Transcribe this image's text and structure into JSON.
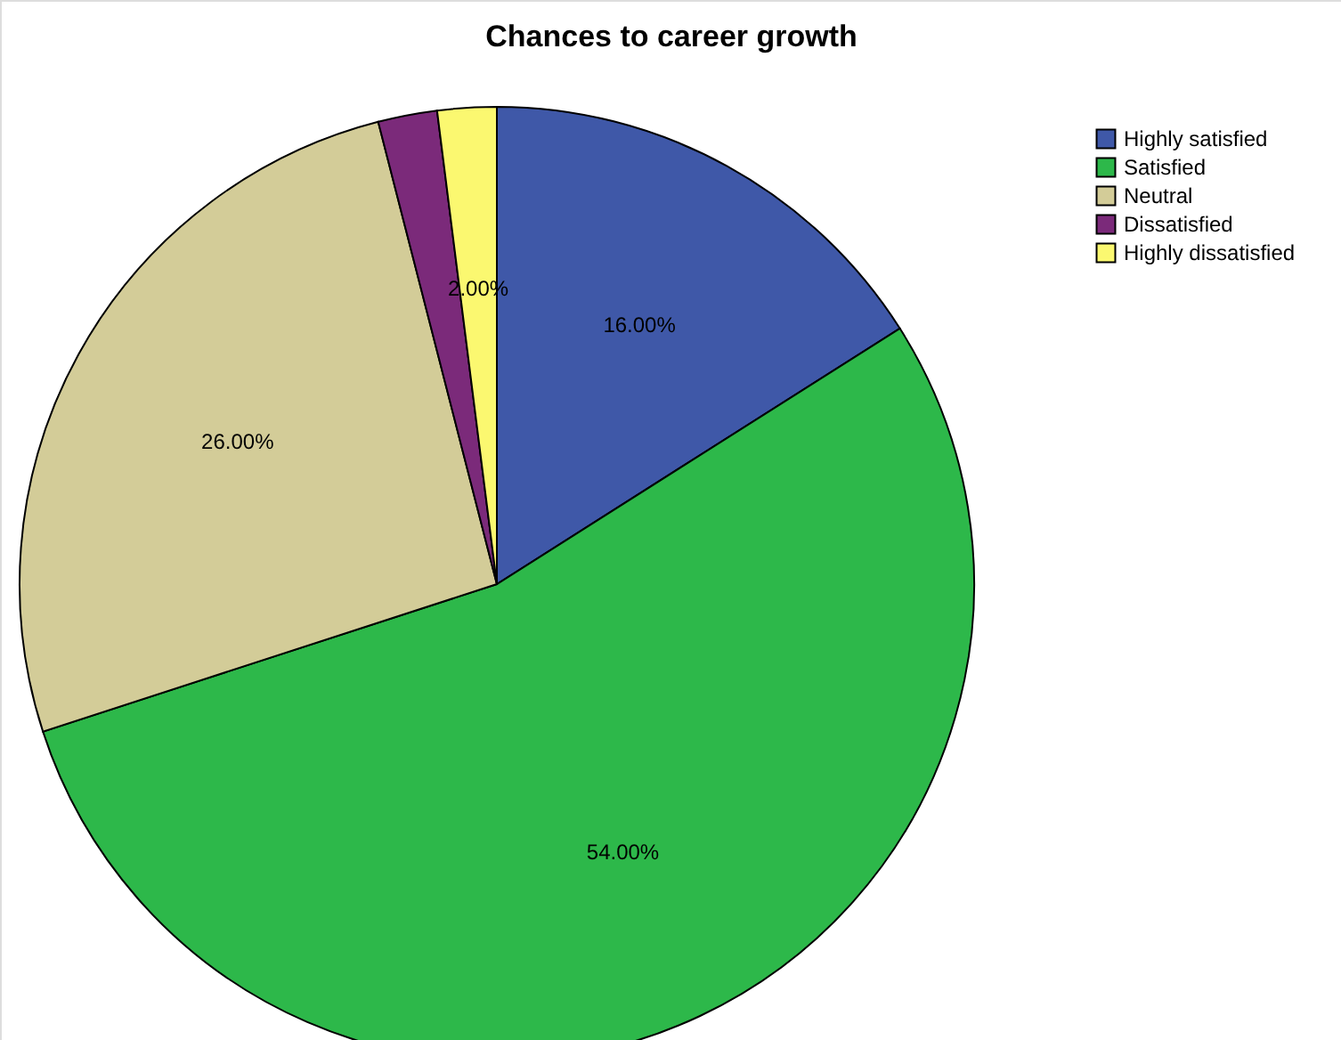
{
  "chart_data": {
    "type": "pie",
    "title": "Chances to career growth",
    "categories": [
      "Highly satisfied",
      "Satisfied",
      "Neutral",
      "Dissatisfied",
      "Highly dissatisfied"
    ],
    "values": [
      16,
      54,
      26,
      2,
      2
    ],
    "colors": [
      "#3f58a8",
      "#2db84a",
      "#d3cc98",
      "#7b2a7a",
      "#fbf870"
    ],
    "value_labels": [
      "16.00%",
      "54.00%",
      "26.00%",
      null,
      "2.00%"
    ],
    "legend": "top right"
  }
}
